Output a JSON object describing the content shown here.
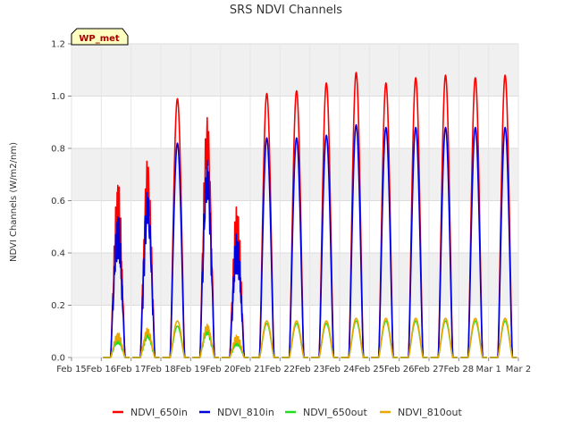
{
  "chart_data": {
    "type": "line",
    "title": "SRS NDVI Channels",
    "ylabel": "NDVI Channels (W/m2/nm)",
    "xlabel": "",
    "badge": "WP_met",
    "ylim": [
      0,
      1.2
    ],
    "xlim": [
      "Feb 15",
      "Mar 2"
    ],
    "y_ticks": [
      "0.0",
      "0.2",
      "0.4",
      "0.6",
      "0.8",
      "1.0",
      "1.2"
    ],
    "x_ticks": [
      "Feb 15",
      "Feb 16",
      "Feb 17",
      "Feb 18",
      "Feb 19",
      "Feb 20",
      "Feb 21",
      "Feb 22",
      "Feb 23",
      "Feb 24",
      "Feb 25",
      "Feb 26",
      "Feb 27",
      "Feb 28",
      "Mar 1",
      "Mar 2"
    ],
    "grid": true,
    "legend_position": "bottom",
    "days": [
      "Feb 16",
      "Feb 17",
      "Feb 18",
      "Feb 19",
      "Feb 20",
      "Feb 21",
      "Feb 22",
      "Feb 23",
      "Feb 24",
      "Feb 25",
      "Feb 26",
      "Feb 27",
      "Feb 28",
      "Mar 1"
    ],
    "series": [
      {
        "name": "NDVI_650in",
        "color": "#ff0000",
        "daily_peaks": [
          0.71,
          0.81,
          0.99,
          1.01,
          0.61,
          1.01,
          1.02,
          1.05,
          1.09,
          1.05,
          1.07,
          1.08,
          1.07,
          1.08
        ]
      },
      {
        "name": "NDVI_810in",
        "color": "#0000dd",
        "daily_peaks": [
          0.58,
          0.68,
          0.82,
          0.83,
          0.5,
          0.84,
          0.84,
          0.85,
          0.89,
          0.88,
          0.88,
          0.88,
          0.88,
          0.88
        ]
      },
      {
        "name": "NDVI_650out",
        "color": "#22dd22",
        "daily_peaks": [
          0.08,
          0.1,
          0.12,
          0.12,
          0.07,
          0.13,
          0.13,
          0.13,
          0.14,
          0.14,
          0.14,
          0.14,
          0.14,
          0.14
        ]
      },
      {
        "name": "NDVI_810out",
        "color": "#e8a800",
        "daily_peaks": [
          0.1,
          0.12,
          0.14,
          0.14,
          0.09,
          0.14,
          0.14,
          0.14,
          0.15,
          0.15,
          0.15,
          0.15,
          0.15,
          0.15
        ]
      }
    ]
  }
}
